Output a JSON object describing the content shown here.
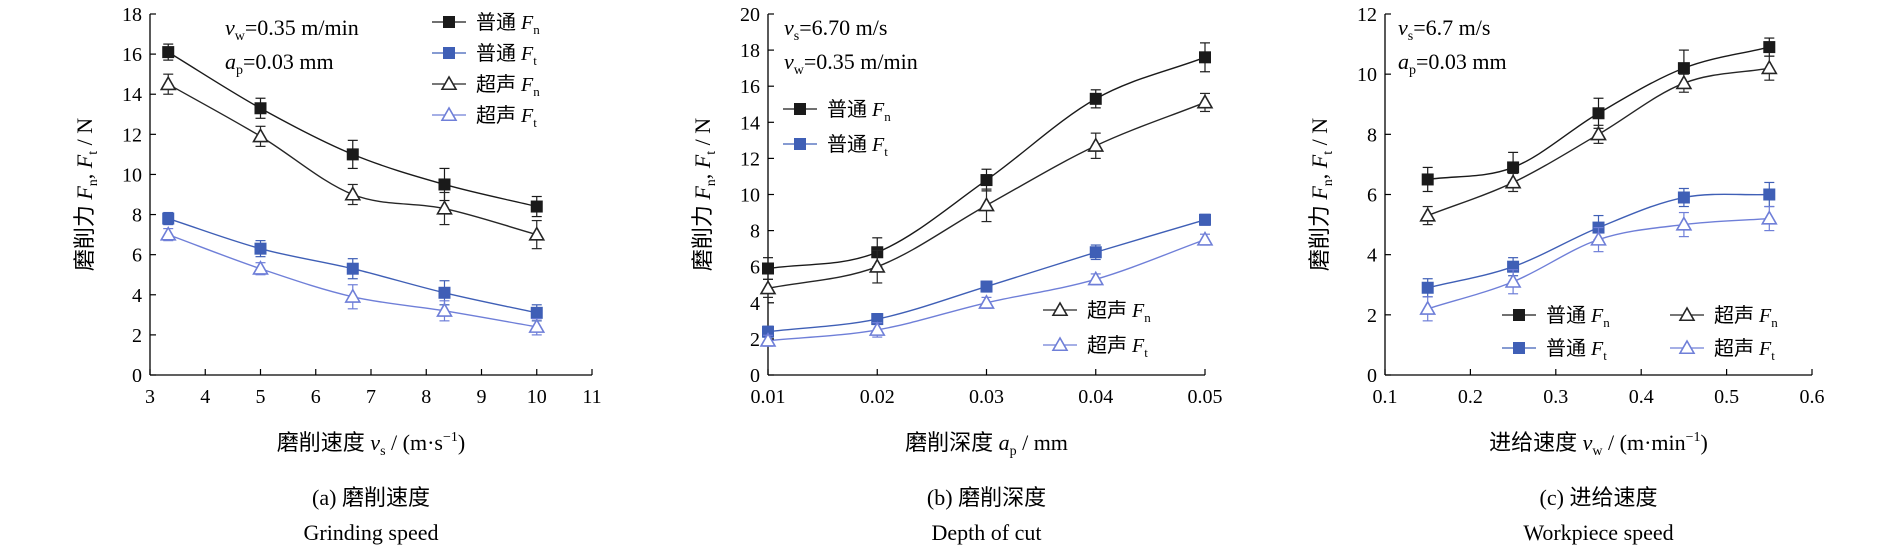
{
  "colors": {
    "conventional": "#1a1a1a",
    "conventional_ft": "#3f5fb6",
    "ultrasonic": "#262626",
    "ultrasonic_ft": "#6f7fd8"
  },
  "chart_data": [
    {
      "type": "line",
      "panel_label": "(a) 磨削速度",
      "panel_label_en": "Grinding speed",
      "conditions": [
        {
          "var": "v",
          "sub": "w",
          "value": "=0.35 m/min"
        },
        {
          "var": "a",
          "sub": "p",
          "value": "=0.03 mm"
        }
      ],
      "xlabel": {
        "prefix": "磨削速度 ",
        "var": "v",
        "sub": "s",
        "unit": " / (m·s",
        "sup": "−1",
        "close": ")"
      },
      "ylabel": "磨削力 F",
      "xlim": [
        3,
        11
      ],
      "ylim": [
        0,
        18
      ],
      "xticks": [
        "3",
        "4",
        "5",
        "6",
        "7",
        "8",
        "9",
        "10",
        "11"
      ],
      "yticks": [
        "0",
        "2",
        "4",
        "6",
        "8",
        "10",
        "12",
        "14",
        "16",
        "18"
      ],
      "legend": "top-right",
      "series": [
        {
          "name": "普通",
          "var": "F",
          "sub": "n",
          "marker": "square",
          "x": [
            3.33,
            5.0,
            6.67,
            8.33,
            10.0
          ],
          "y": [
            16.1,
            13.3,
            11.0,
            9.5,
            8.4
          ],
          "err": [
            0.4,
            0.5,
            0.7,
            0.8,
            0.5
          ]
        },
        {
          "name": "普通",
          "var": "F",
          "sub": "t",
          "marker": "square",
          "x": [
            3.33,
            5.0,
            6.67,
            8.33,
            10.0
          ],
          "y": [
            7.8,
            6.3,
            5.3,
            4.1,
            3.1
          ],
          "err": [
            0.3,
            0.4,
            0.5,
            0.6,
            0.4
          ]
        },
        {
          "name": "超声",
          "var": "F",
          "sub": "n",
          "marker": "triangle",
          "x": [
            3.33,
            5.0,
            6.67,
            8.33,
            10.0
          ],
          "y": [
            14.5,
            11.9,
            9.0,
            8.3,
            7.0
          ],
          "err": [
            0.5,
            0.5,
            0.5,
            0.8,
            0.7
          ]
        },
        {
          "name": "超声",
          "var": "F",
          "sub": "t",
          "marker": "triangle",
          "x": [
            3.33,
            5.0,
            6.67,
            8.33,
            10.0
          ],
          "y": [
            7.0,
            5.3,
            3.9,
            3.2,
            2.4
          ],
          "err": [
            0.3,
            0.3,
            0.6,
            0.5,
            0.4
          ]
        }
      ]
    },
    {
      "type": "line",
      "panel_label": "(b) 磨削深度",
      "panel_label_en": "Depth of cut",
      "conditions": [
        {
          "var": "v",
          "sub": "s",
          "value": "=6.70 m/s"
        },
        {
          "var": "v",
          "sub": "w",
          "value": "=0.35 m/min"
        }
      ],
      "xlabel": {
        "prefix": "磨削深度 ",
        "var": "a",
        "sub": "p",
        "unit": " / mm",
        "sup": "",
        "close": ""
      },
      "ylabel": "磨削力 F",
      "xlim": [
        0.01,
        0.05
      ],
      "ylim": [
        0,
        20
      ],
      "xticks": [
        "0.01",
        "0.02",
        "0.03",
        "0.04",
        "0.05"
      ],
      "yticks": [
        "0",
        "2",
        "4",
        "6",
        "8",
        "10",
        "12",
        "14",
        "16",
        "18",
        "20"
      ],
      "legend": "split: top-left and bottom-right",
      "series": [
        {
          "name": "普通",
          "var": "F",
          "sub": "n",
          "marker": "square",
          "x": [
            0.01,
            0.02,
            0.03,
            0.04,
            0.05
          ],
          "y": [
            5.9,
            6.8,
            10.8,
            15.3,
            17.6
          ],
          "err": [
            0.6,
            0.8,
            0.6,
            0.5,
            0.8
          ]
        },
        {
          "name": "普通",
          "var": "F",
          "sub": "t",
          "marker": "square",
          "x": [
            0.01,
            0.02,
            0.03,
            0.04,
            0.05
          ],
          "y": [
            2.4,
            3.1,
            4.9,
            6.8,
            8.6
          ],
          "err": [
            0.3,
            0.3,
            0.3,
            0.4,
            0.3
          ]
        },
        {
          "name": "超声",
          "var": "F",
          "sub": "n",
          "marker": "triangle",
          "x": [
            0.01,
            0.02,
            0.03,
            0.04,
            0.05
          ],
          "y": [
            4.8,
            6.0,
            9.4,
            12.7,
            15.1
          ],
          "err": [
            0.5,
            0.9,
            0.9,
            0.7,
            0.5
          ]
        },
        {
          "name": "超声",
          "var": "F",
          "sub": "t",
          "marker": "triangle",
          "x": [
            0.01,
            0.02,
            0.03,
            0.04,
            0.05
          ],
          "y": [
            1.9,
            2.5,
            4.0,
            5.3,
            7.5
          ],
          "err": [
            0.3,
            0.4,
            0.3,
            0.3,
            0.3
          ]
        }
      ]
    },
    {
      "type": "line",
      "panel_label": "(c) 进给速度",
      "panel_label_en": "Workpiece speed",
      "conditions": [
        {
          "var": "v",
          "sub": "s",
          "value": "=6.7 m/s"
        },
        {
          "var": "a",
          "sub": "p",
          "value": "=0.03 mm"
        }
      ],
      "xlabel": {
        "prefix": "进给速度 ",
        "var": "v",
        "sub": "w",
        "unit": " / (m·min",
        "sup": "−1",
        "close": ")"
      },
      "ylabel": "磨削力 F",
      "xlim": [
        0.1,
        0.6
      ],
      "ylim": [
        0,
        12
      ],
      "xticks": [
        "0.1",
        "0.2",
        "0.3",
        "0.4",
        "0.5",
        "0.6"
      ],
      "yticks": [
        "0",
        "2",
        "4",
        "6",
        "8",
        "10",
        "12"
      ],
      "legend": "bottom-right, two columns",
      "series": [
        {
          "name": "普通",
          "var": "F",
          "sub": "n",
          "marker": "square",
          "x": [
            0.15,
            0.25,
            0.35,
            0.45,
            0.55
          ],
          "y": [
            6.5,
            6.9,
            8.7,
            10.2,
            10.9
          ],
          "err": [
            0.4,
            0.5,
            0.5,
            0.6,
            0.3
          ]
        },
        {
          "name": "普通",
          "var": "F",
          "sub": "t",
          "marker": "square",
          "x": [
            0.15,
            0.25,
            0.35,
            0.45,
            0.55
          ],
          "y": [
            2.9,
            3.6,
            4.9,
            5.9,
            6.0
          ],
          "err": [
            0.3,
            0.3,
            0.4,
            0.3,
            0.4
          ]
        },
        {
          "name": "超声",
          "var": "F",
          "sub": "n",
          "marker": "triangle",
          "x": [
            0.15,
            0.25,
            0.35,
            0.45,
            0.55
          ],
          "y": [
            5.3,
            6.4,
            8.0,
            9.7,
            10.2
          ],
          "err": [
            0.3,
            0.3,
            0.3,
            0.3,
            0.4
          ]
        },
        {
          "name": "超声",
          "var": "F",
          "sub": "t",
          "marker": "triangle",
          "x": [
            0.15,
            0.25,
            0.35,
            0.45,
            0.55
          ],
          "y": [
            2.2,
            3.1,
            4.5,
            5.0,
            5.2
          ],
          "err": [
            0.4,
            0.4,
            0.4,
            0.4,
            0.4
          ]
        }
      ]
    }
  ]
}
